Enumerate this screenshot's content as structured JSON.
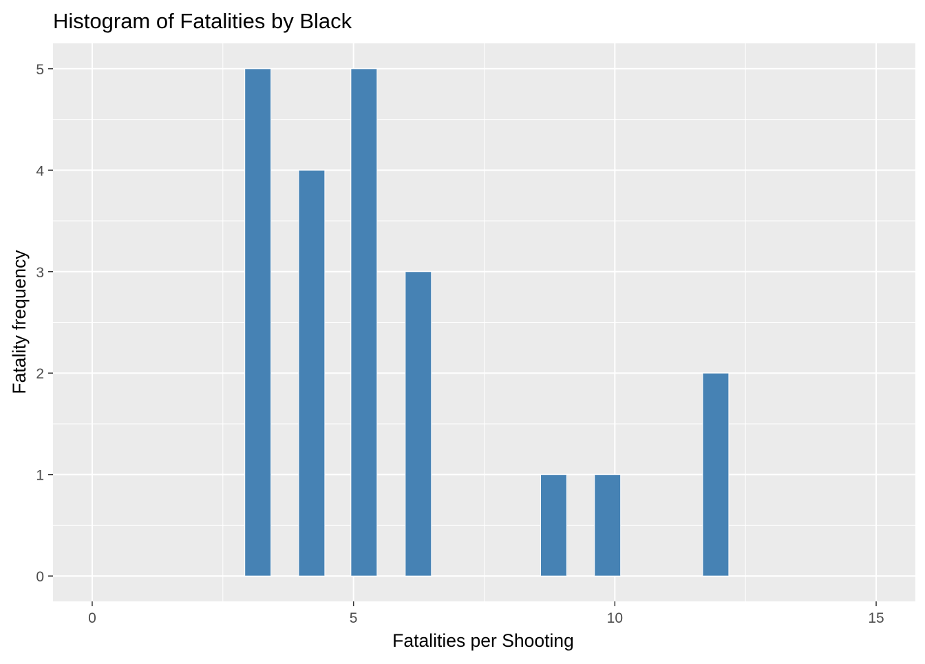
{
  "chart_data": {
    "type": "bar",
    "title": "Histogram of Fatalities by Black",
    "xlabel": "Fatalities per Shooting",
    "ylabel": "Fatality frequency",
    "xlim": [
      -0.75,
      15.75
    ],
    "ylim": [
      -0.25,
      5.25
    ],
    "x_ticks": [
      0,
      5,
      10,
      15
    ],
    "y_ticks": [
      0,
      1,
      2,
      3,
      4,
      5
    ],
    "grid": true,
    "bar_width": 0.5,
    "x": [
      3.17,
      4.2,
      5.2,
      6.24,
      8.83,
      9.86,
      11.93
    ],
    "values": [
      5,
      4,
      5,
      3,
      1,
      1,
      2
    ],
    "colors": {
      "bar_fill": "#4682B4",
      "bar_outline": "#FFFFFF",
      "panel_background": "#EBEBEB",
      "grid_line": "#FFFFFF",
      "tick_label": "#4D4D4D",
      "text": "#000000"
    }
  }
}
